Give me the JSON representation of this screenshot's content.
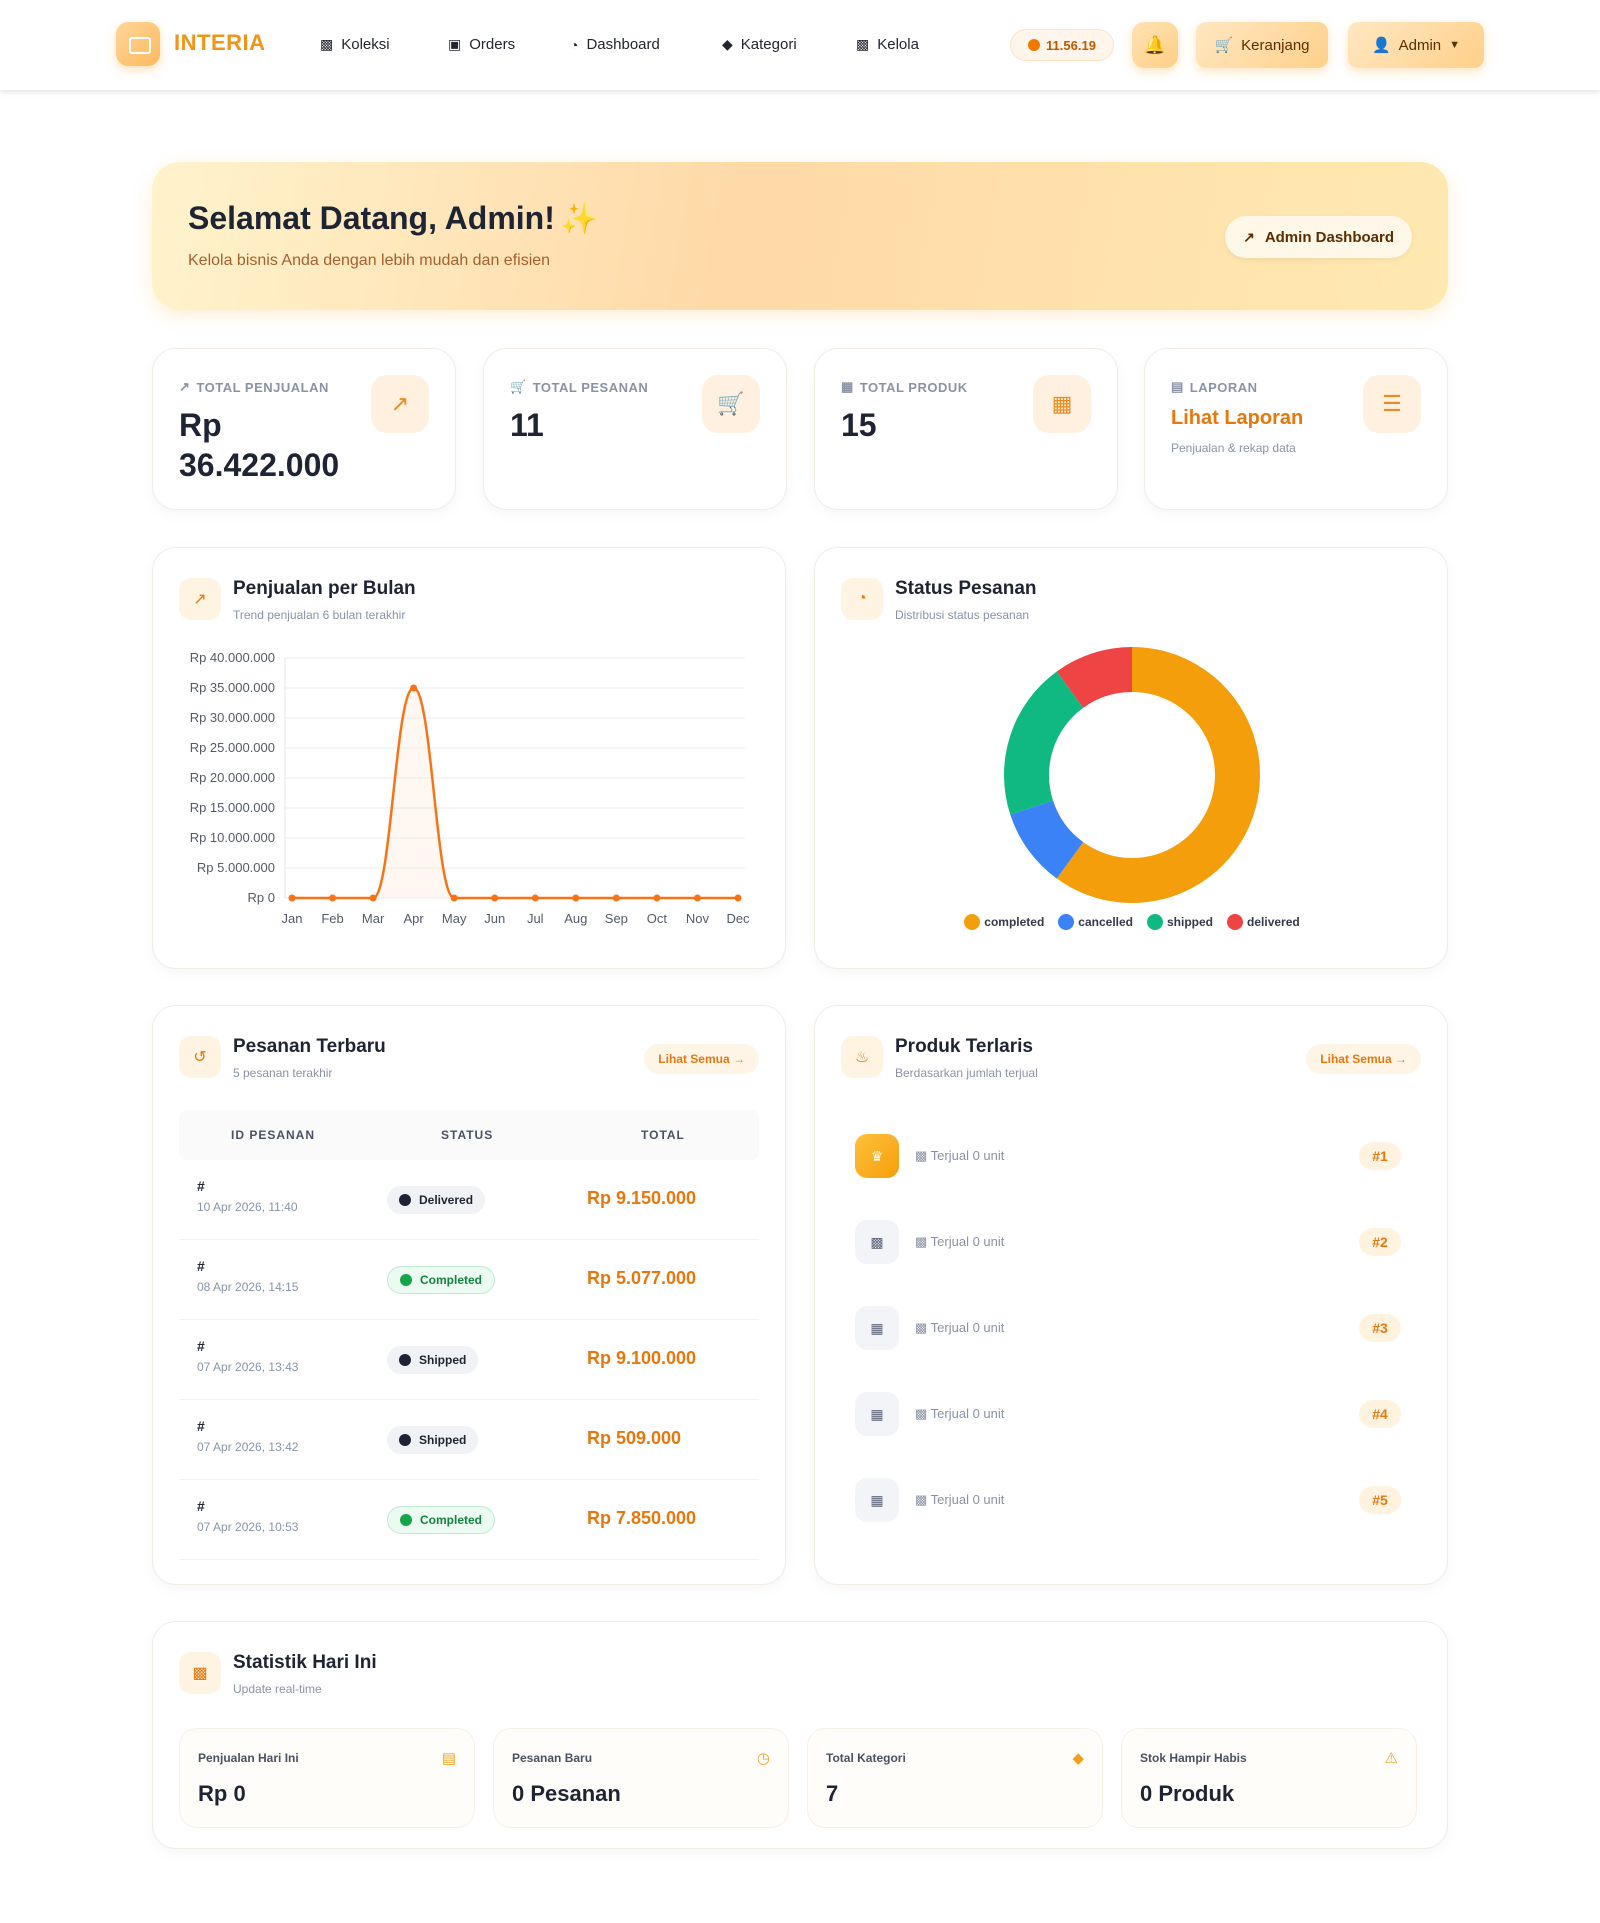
{
  "nav": {
    "brand": "INTERIA",
    "links": [
      {
        "label": "Koleksi",
        "icon": "couch-icon"
      },
      {
        "label": "Orders",
        "icon": "bag-icon"
      },
      {
        "label": "Dashboard",
        "icon": "pie-chart-icon"
      },
      {
        "label": "Kategori",
        "icon": "tags-icon"
      },
      {
        "label": "Kelola",
        "icon": "couch-icon"
      }
    ],
    "clock": "11.56.19",
    "cart_label": "Keranjang",
    "user_label": "Admin"
  },
  "hero": {
    "title": "Selamat Datang, Admin!",
    "subtitle": "Kelola bisnis Anda dengan lebih mudah dan efisien",
    "button": "Admin Dashboard"
  },
  "stats": [
    {
      "label": "TOTAL PENJUALAN",
      "value": "Rp 36.422.000",
      "icon": "chart-line-icon"
    },
    {
      "label": "TOTAL PESANAN",
      "value": "11",
      "icon": "cart-icon"
    },
    {
      "label": "TOTAL PRODUK",
      "value": "15",
      "icon": "box-icon"
    },
    {
      "label": "LAPORAN",
      "value": "Lihat Laporan",
      "sub": "Penjualan & rekap data",
      "icon": "report-icon"
    }
  ],
  "sales_chart": {
    "title": "Penjualan per Bulan",
    "subtitle": "Trend penjualan 6 bulan terakhir"
  },
  "status_chart": {
    "title": "Status Pesanan",
    "subtitle": "Distribusi status pesanan"
  },
  "chart_data": [
    {
      "type": "area",
      "categories": [
        "Jan",
        "Feb",
        "Mar",
        "Apr",
        "May",
        "Jun",
        "Jul",
        "Aug",
        "Sep",
        "Oct",
        "Nov",
        "Dec"
      ],
      "values": [
        0,
        0,
        0,
        35000000,
        0,
        0,
        0,
        0,
        0,
        0,
        0,
        0
      ],
      "ylim": [
        0,
        40000000
      ],
      "yticks": [
        "Rp 0",
        "Rp 5.000.000",
        "Rp 10.000.000",
        "Rp 15.000.000",
        "Rp 20.000.000",
        "Rp 25.000.000",
        "Rp 30.000.000",
        "Rp 35.000.000",
        "Rp 40.000.000"
      ],
      "color": "#f97316",
      "grid": true
    },
    {
      "type": "pie",
      "labels": [
        "completed",
        "cancelled",
        "shipped",
        "delivered"
      ],
      "values": [
        6,
        1,
        2,
        1
      ],
      "colors": [
        "#f59e0b",
        "#3b82f6",
        "#10b981",
        "#ef4444"
      ],
      "legend": "bottom"
    }
  ],
  "recent_orders": {
    "title": "Pesanan Terbaru",
    "subtitle": "5 pesanan terakhir",
    "see_all": "Lihat Semua",
    "columns": [
      "ID PESANAN",
      "STATUS",
      "TOTAL"
    ],
    "rows": [
      {
        "id": "#",
        "date": "10 Apr 2026, 11:40",
        "status": "Delivered",
        "total": "Rp 9.150.000"
      },
      {
        "id": "#",
        "date": "08 Apr 2026, 14:15",
        "status": "Completed",
        "total": "Rp 5.077.000"
      },
      {
        "id": "#",
        "date": "07 Apr 2026, 13:43",
        "status": "Shipped",
        "total": "Rp 9.100.000"
      },
      {
        "id": "#",
        "date": "07 Apr 2026, 13:42",
        "status": "Shipped",
        "total": "Rp 509.000"
      },
      {
        "id": "#",
        "date": "07 Apr 2026, 10:53",
        "status": "Completed",
        "total": "Rp 7.850.000"
      }
    ]
  },
  "best_sellers": {
    "title": "Produk Terlaris",
    "subtitle": "Berdasarkan jumlah terjual",
    "see_all": "Lihat Semua",
    "items": [
      {
        "sold": "Terjual 0 unit",
        "rank": "#1"
      },
      {
        "sold": "Terjual 0 unit",
        "rank": "#2"
      },
      {
        "sold": "Terjual 0 unit",
        "rank": "#3"
      },
      {
        "sold": "Terjual 0 unit",
        "rank": "#4"
      },
      {
        "sold": "Terjual 0 unit",
        "rank": "#5"
      }
    ]
  },
  "today": {
    "title": "Statistik Hari Ini",
    "subtitle": "Update real-time",
    "cards": [
      {
        "label": "Penjualan Hari Ini",
        "value": "Rp 0",
        "icon": "calendar-icon"
      },
      {
        "label": "Pesanan Baru",
        "value": "0 Pesanan",
        "icon": "clock-icon"
      },
      {
        "label": "Total Kategori",
        "value": "7",
        "icon": "tags-icon"
      },
      {
        "label": "Stok Hampir Habis",
        "value": "0 Produk",
        "icon": "warning-icon"
      }
    ]
  }
}
